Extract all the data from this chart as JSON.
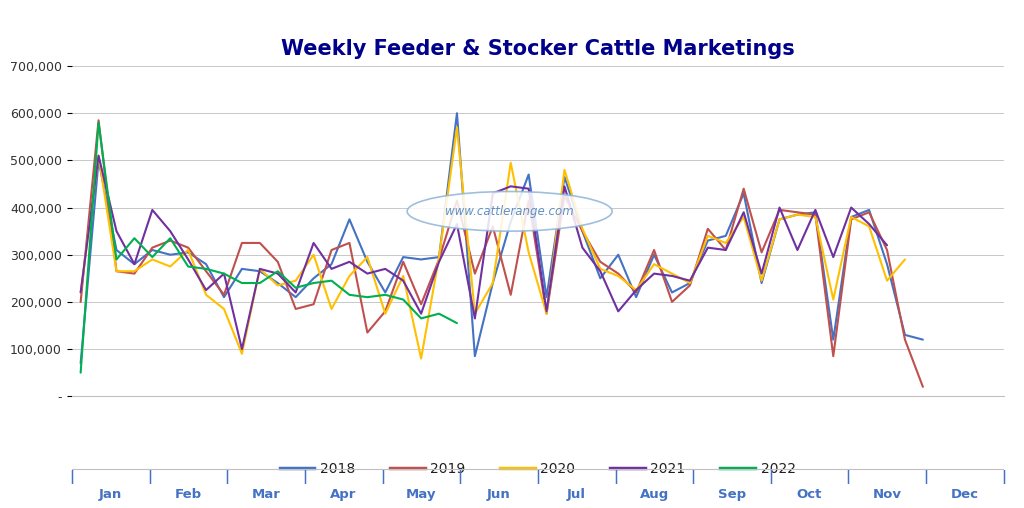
{
  "title": "Weekly Feeder & Stocker Cattle Marketings",
  "title_color": "#00008B",
  "background_color": "#FFFFFF",
  "plot_bg_color": "#FFFFFF",
  "watermark": "www.cattlerange.com",
  "ylim": [
    0,
    700000
  ],
  "yticks": [
    0,
    100000,
    200000,
    300000,
    400000,
    500000,
    600000,
    700000
  ],
  "ytick_labels": [
    "-",
    "100,000",
    "200,000",
    "300,000",
    "400,000",
    "500,000",
    "600,000",
    "700,000"
  ],
  "month_labels": [
    "Jan",
    "Feb",
    "Mar",
    "Apr",
    "May",
    "Jun",
    "Jul",
    "Aug",
    "Sep",
    "Oct",
    "Nov",
    "Dec"
  ],
  "series": {
    "2018": {
      "color": "#4472C4",
      "values": [
        70000,
        500000,
        310000,
        280000,
        310000,
        300000,
        305000,
        280000,
        210000,
        270000,
        265000,
        240000,
        210000,
        250000,
        280000,
        375000,
        285000,
        220000,
        295000,
        290000,
        295000,
        600000,
        85000,
        240000,
        370000,
        470000,
        210000,
        465000,
        350000,
        250000,
        300000,
        210000,
        300000,
        220000,
        240000,
        330000,
        340000,
        430000,
        240000,
        375000,
        385000,
        390000,
        120000,
        380000,
        395000,
        280000,
        130000,
        120000,
        null,
        null,
        null,
        null
      ]
    },
    "2019": {
      "color": "#C0504D",
      "values": [
        200000,
        585000,
        265000,
        260000,
        315000,
        330000,
        315000,
        265000,
        215000,
        325000,
        325000,
        285000,
        185000,
        195000,
        310000,
        325000,
        135000,
        180000,
        285000,
        195000,
        290000,
        415000,
        260000,
        360000,
        215000,
        415000,
        175000,
        425000,
        350000,
        285000,
        260000,
        220000,
        310000,
        200000,
        235000,
        355000,
        310000,
        440000,
        305000,
        395000,
        390000,
        385000,
        85000,
        375000,
        390000,
        310000,
        120000,
        20000,
        null,
        null,
        null,
        null
      ]
    },
    "2020": {
      "color": "#FFC000",
      "values": [
        220000,
        510000,
        265000,
        265000,
        290000,
        275000,
        310000,
        215000,
        185000,
        90000,
        270000,
        235000,
        245000,
        300000,
        185000,
        255000,
        295000,
        175000,
        255000,
        80000,
        295000,
        570000,
        175000,
        240000,
        495000,
        305000,
        175000,
        480000,
        355000,
        270000,
        255000,
        225000,
        280000,
        260000,
        240000,
        340000,
        325000,
        380000,
        245000,
        375000,
        385000,
        380000,
        205000,
        380000,
        360000,
        245000,
        290000,
        null,
        null,
        null,
        null,
        null
      ]
    },
    "2021": {
      "color": "#7030A0",
      "values": [
        220000,
        510000,
        350000,
        280000,
        395000,
        350000,
        290000,
        225000,
        260000,
        100000,
        270000,
        260000,
        220000,
        325000,
        270000,
        285000,
        260000,
        270000,
        245000,
        175000,
        285000,
        365000,
        165000,
        430000,
        445000,
        440000,
        180000,
        445000,
        315000,
        265000,
        180000,
        225000,
        260000,
        255000,
        245000,
        315000,
        310000,
        390000,
        260000,
        400000,
        310000,
        395000,
        295000,
        400000,
        365000,
        320000,
        null,
        null,
        null,
        null,
        null,
        null
      ]
    },
    "2022": {
      "color": "#00B050",
      "values": [
        50000,
        580000,
        290000,
        335000,
        295000,
        335000,
        275000,
        270000,
        260000,
        240000,
        240000,
        265000,
        230000,
        240000,
        245000,
        215000,
        210000,
        215000,
        205000,
        165000,
        175000,
        155000,
        null,
        null,
        null,
        null,
        null,
        null,
        null,
        null,
        null,
        null,
        null,
        null,
        null,
        null,
        null,
        null,
        null,
        null,
        null,
        null,
        null,
        null,
        null,
        null,
        null,
        null,
        null,
        null,
        null,
        null
      ]
    }
  }
}
